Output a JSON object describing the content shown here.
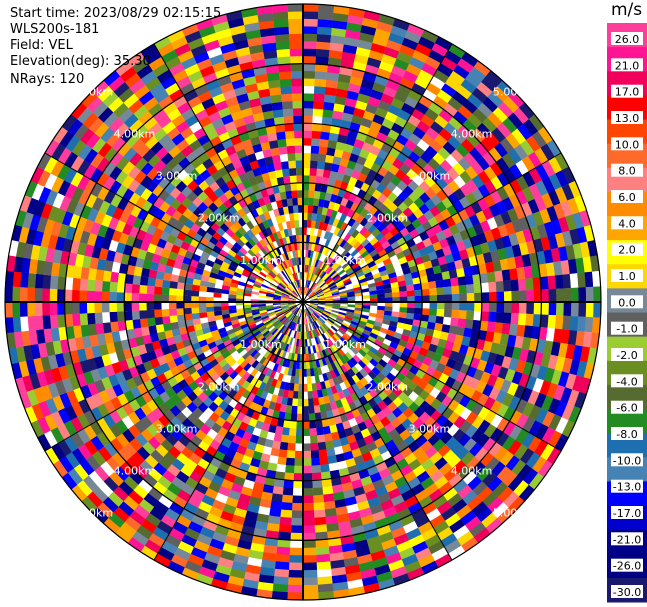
{
  "info": {
    "start_time": "Start time: 2023/08/29 02:15:15",
    "station": "WLS200s-181",
    "field": "Field: VEL",
    "elevation": "Elevation(deg): 35.30",
    "nrays": "NRays: 120"
  },
  "colorbar": {
    "unit": "m/s",
    "ticks": [
      "26.0",
      "21.0",
      "17.0",
      "13.0",
      "10.0",
      "8.0",
      "6.0",
      "4.0",
      "2.0",
      "1.0",
      "0.0",
      "-1.0",
      "-2.0",
      "-4.0",
      "-6.0",
      "-8.0",
      "-10.0",
      "-13.0",
      "-17.0",
      "-21.0",
      "-26.0",
      "-30.0"
    ],
    "colors": [
      "#ff3d9a",
      "#ff1493",
      "#f0005a",
      "#ff0000",
      "#ff4500",
      "#ff6a2a",
      "#ff8080",
      "#ff8c00",
      "#ffa500",
      "#ffff00",
      "#ffd700",
      "#778899",
      "#606060",
      "#9acd32",
      "#6b8e23",
      "#556b2f",
      "#228b22",
      "#1e6fb0",
      "#4682b4",
      "#0000ff",
      "#0000cd",
      "#00008b",
      "#000080",
      "#191970"
    ]
  },
  "chart_data": {
    "type": "heatmap",
    "projection": "polar-ppi",
    "field": "VEL",
    "nrays": 120,
    "range_rings_km": [
      1.0,
      2.0,
      3.0,
      4.0,
      5.0
    ],
    "ring_labels": [
      "1.00km",
      "2.00km",
      "3.00km",
      "4.00km",
      "5.00km"
    ],
    "max_range_km": 5.0,
    "unit": "m/s",
    "vmin": -30.0,
    "vmax": 30.0
  }
}
